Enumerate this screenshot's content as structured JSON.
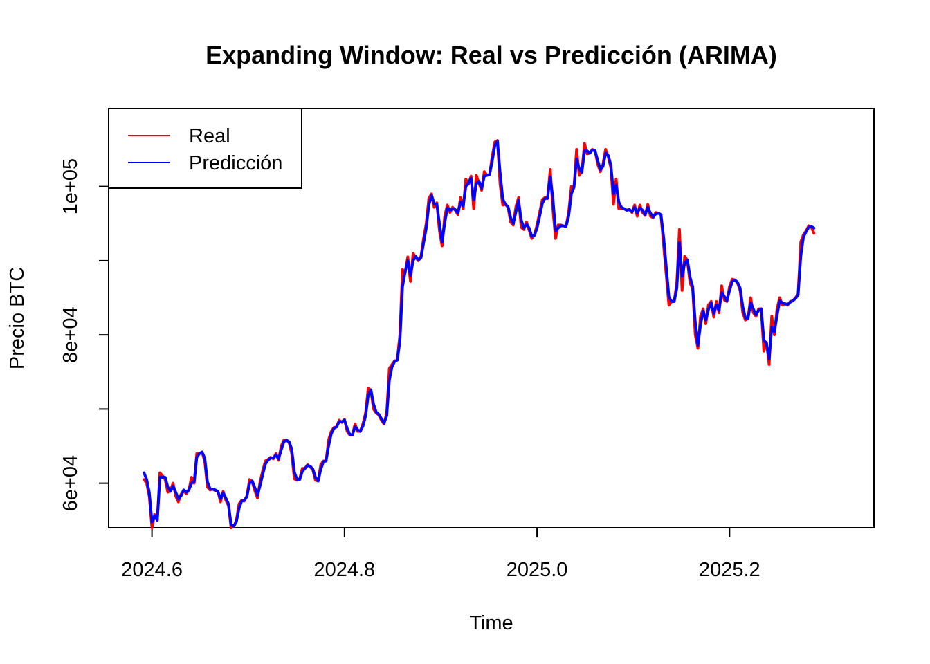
{
  "chart_data": {
    "type": "line",
    "title": "Expanding Window: Real vs Predicción (ARIMA)",
    "xlabel": "Time",
    "ylabel": "Precio BTC",
    "xlim": [
      2024.555,
      2025.35
    ],
    "ylim": [
      54000,
      110500
    ],
    "x_ticks": [
      2024.6,
      2024.8,
      2025.0,
      2025.2
    ],
    "x_tick_labels": [
      "2024.6",
      "2024.8",
      "2025.0",
      "2025.2"
    ],
    "y_ticks": [
      60000,
      70000,
      80000,
      90000,
      100000
    ],
    "y_tick_labels": [
      "6e+04",
      "",
      "8e+04",
      "",
      "1e+05"
    ],
    "grid": false,
    "legend": "top-left",
    "x_start": 2024.5918,
    "x_step": 0.0027397,
    "series": [
      {
        "name": "Real",
        "color": "#ff0000",
        "values": [
          60500,
          60000,
          58200,
          54000,
          55800,
          55100,
          61400,
          61000,
          60500,
          58800,
          59000,
          60000,
          58300,
          57500,
          58500,
          59000,
          58600,
          59100,
          60800,
          60000,
          64000,
          64000,
          64200,
          63000,
          59500,
          59100,
          59200,
          59000,
          58900,
          57500,
          58900,
          57700,
          57000,
          54000,
          54200,
          55000,
          57200,
          57700,
          57600,
          58300,
          60500,
          60200,
          59000,
          58000,
          60200,
          61700,
          63000,
          63200,
          63500,
          63300,
          64000,
          63100,
          65000,
          65800,
          65800,
          65500,
          64000,
          60600,
          60400,
          60600,
          62000,
          62000,
          62500,
          62200,
          61800,
          60400,
          60300,
          62500,
          63000,
          63000,
          65900,
          67000,
          67500,
          67600,
          68500,
          68200,
          68600,
          67000,
          66500,
          66500,
          68000,
          67000,
          67000,
          68000,
          69500,
          72800,
          72500,
          70000,
          69500,
          69200,
          68500,
          68000,
          69500,
          75500,
          76000,
          76500,
          76600,
          80000,
          88800,
          88400,
          90500,
          87200,
          91000,
          90400,
          90000,
          90600,
          93000,
          95000,
          98400,
          99000,
          97200,
          97800,
          94000,
          92000,
          96000,
          97500,
          96500,
          97200,
          96800,
          96200,
          98500,
          97000,
          101000,
          100300,
          101400,
          97000,
          101500,
          100400,
          99500,
          102000,
          101500,
          101600,
          104000,
          106000,
          106200,
          100300,
          97500,
          97600,
          97200,
          95200,
          94800,
          97300,
          98500,
          94500,
          94200,
          95200,
          94100,
          93000,
          93500,
          94800,
          96500,
          98200,
          98500,
          98400,
          102300,
          97000,
          93000,
          94800,
          94800,
          94700,
          94600,
          96500,
          100000,
          99900,
          105000,
          101500,
          102000,
          105800,
          104400,
          104500,
          105000,
          104800,
          103000,
          102000,
          103000,
          105000,
          104000,
          102500,
          97600,
          101000,
          97000,
          97000,
          97000,
          96800,
          96900,
          96500,
          97500,
          96000,
          97500,
          96500,
          96100,
          97600,
          96000,
          95800,
          96500,
          96400,
          96200,
          92000,
          88000,
          84000,
          84500,
          84500,
          87000,
          94200,
          86000,
          90600,
          90000,
          87000,
          86200,
          80000,
          78200,
          82500,
          83500,
          81500,
          84000,
          84500,
          82400,
          84500,
          83000,
          86600,
          84700,
          84500,
          86500,
          87500,
          87400,
          87000,
          86000,
          83000,
          82000,
          82200,
          85000,
          83000,
          82500,
          83500,
          83500,
          77800,
          79000,
          76000,
          82500,
          80000,
          83500,
          85000,
          84000,
          84200,
          84000,
          84500,
          84600,
          85000,
          85500,
          92500,
          93500,
          94000,
          94700,
          94500,
          93700
        ]
      },
      {
        "name": "Predicción",
        "color": "#0000ff",
        "values": [
          61400,
          60500,
          58700,
          54800,
          55600,
          55000,
          60800,
          60800,
          60800,
          59500,
          58900,
          59600,
          58800,
          57900,
          58300,
          59100,
          58800,
          59100,
          60000,
          60200,
          63500,
          64000,
          64200,
          63400,
          60200,
          59300,
          59200,
          59100,
          58900,
          57900,
          58700,
          58000,
          57200,
          54400,
          54200,
          54800,
          56600,
          57600,
          57700,
          58200,
          60000,
          60300,
          59400,
          58400,
          59700,
          61200,
          62600,
          63100,
          63400,
          63400,
          63800,
          63300,
          64500,
          65600,
          65800,
          65600,
          64600,
          61500,
          60500,
          60500,
          61600,
          62000,
          62400,
          62300,
          61900,
          60800,
          60300,
          61900,
          62900,
          63000,
          65100,
          66700,
          67400,
          67600,
          68300,
          68300,
          68500,
          67400,
          66600,
          66500,
          67600,
          67200,
          67000,
          67700,
          69100,
          71900,
          72600,
          70700,
          69600,
          69300,
          68700,
          68100,
          69100,
          73900,
          75700,
          76400,
          76600,
          79100,
          86500,
          88500,
          90000,
          88000,
          90000,
          90600,
          90100,
          90400,
          92400,
          94400,
          97500,
          98800,
          97700,
          97600,
          95000,
          92500,
          95100,
          97100,
          96800,
          97000,
          96900,
          96400,
          97900,
          97400,
          100000,
          100500,
          101100,
          98200,
          100400,
          100700,
          99800,
          101400,
          101500,
          101600,
          103400,
          105500,
          106100,
          101900,
          98300,
          97600,
          97300,
          95800,
          95000,
          96600,
          98100,
          95500,
          94400,
          94900,
          94400,
          93300,
          93400,
          94400,
          96000,
          97700,
          98400,
          98400,
          101300,
          98400,
          94000,
          94400,
          94700,
          94700,
          94600,
          96000,
          99000,
          99900,
          103700,
          102400,
          101900,
          104800,
          104800,
          104500,
          104900,
          104800,
          103500,
          102300,
          102700,
          104500,
          104200,
          102900,
          99000,
          100200,
          97900,
          97200,
          97000,
          96800,
          96900,
          96600,
          97200,
          96400,
          97100,
          96800,
          96200,
          97200,
          96400,
          95900,
          96300,
          96400,
          96200,
          93100,
          89100,
          85100,
          84500,
          84500,
          86300,
          92400,
          87900,
          89700,
          90100,
          87800,
          86500,
          81700,
          78600,
          81400,
          83200,
          82000,
          83400,
          84300,
          82900,
          84000,
          83300,
          85700,
          85200,
          84600,
          86000,
          87200,
          87400,
          87100,
          86300,
          83800,
          82300,
          82200,
          84300,
          83500,
          82700,
          83300,
          83500,
          79300,
          78800,
          76800,
          81000,
          80400,
          82600,
          84600,
          84300,
          84200,
          84100,
          84400,
          84600,
          84900,
          85400,
          90600,
          93200,
          93900,
          94500,
          94600,
          94400
        ]
      }
    ]
  }
}
